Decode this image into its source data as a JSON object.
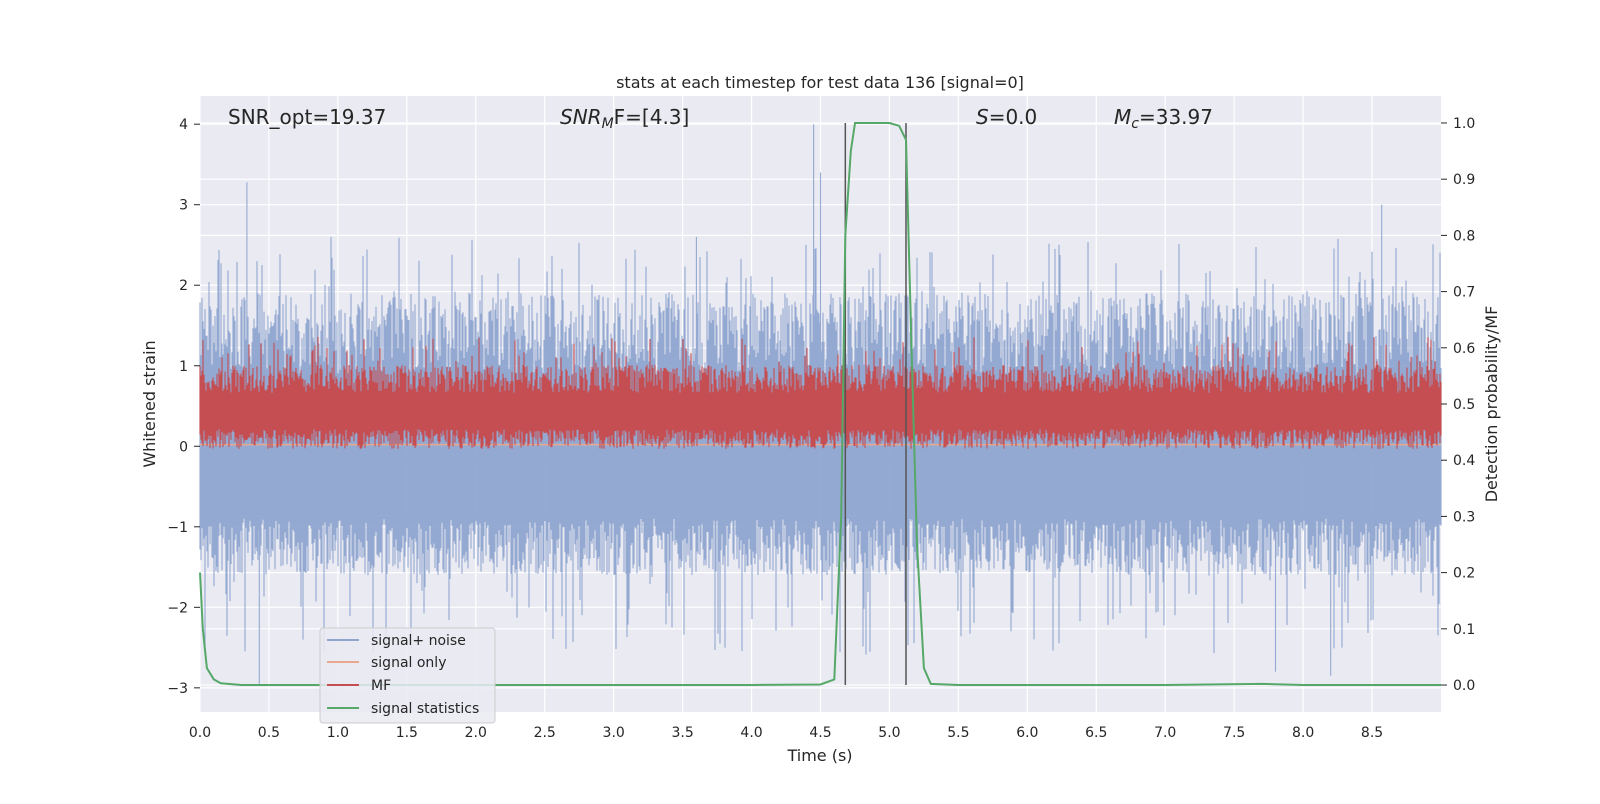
{
  "chart_data": {
    "type": "line",
    "title": "stats at each timestep for test data 136 [signal=0]",
    "xlabel": "Time (s)",
    "ylabel": "Whitened strain",
    "y2label": "Detection probability/MF",
    "xlim": [
      0.0,
      9.0
    ],
    "ylim": [
      -3.3,
      4.35
    ],
    "y2lim": [
      -0.048,
      1.048
    ],
    "xticks": [
      "0.0",
      "0.5",
      "1.0",
      "1.5",
      "2.0",
      "2.5",
      "3.0",
      "3.5",
      "4.0",
      "4.5",
      "5.0",
      "5.5",
      "6.0",
      "6.5",
      "7.0",
      "7.5",
      "8.0",
      "8.5"
    ],
    "yticks": [
      "−3",
      "−2",
      "−1",
      "0",
      "1",
      "2",
      "3",
      "4"
    ],
    "y2ticks": [
      "0.0",
      "0.1",
      "0.2",
      "0.3",
      "0.4",
      "0.5",
      "0.6",
      "0.7",
      "0.8",
      "0.9",
      "1.0"
    ],
    "grid": true,
    "legend_position": "lower-left",
    "annotations": {
      "snr_opt": "SNR_opt=19.37",
      "snr_mf_base": "SNR",
      "snr_mf_sub": "M",
      "snr_mf_rest": "F=[4.3]",
      "s_var": "S",
      "s_rest": "=0.0",
      "mc_var": "M",
      "mc_sub": "c",
      "mc_rest": "=33.97"
    },
    "vlines_x": [
      4.68,
      5.12
    ],
    "series": [
      {
        "name": "signal+ noise",
        "color": "#8fa5cf",
        "kind": "noise",
        "x_range": [
          0.0,
          9.0
        ],
        "typical_range": [
          -1.6,
          1.9
        ],
        "peaks": [
          [
            0.34,
            3.28
          ],
          [
            4.45,
            4.0
          ],
          [
            4.5,
            3.4
          ],
          [
            8.57,
            3.0
          ],
          [
            0.95,
            2.6
          ],
          [
            3.6,
            2.6
          ],
          [
            0.43,
            -2.95
          ],
          [
            7.8,
            -2.8
          ],
          [
            8.2,
            -2.85
          ]
        ]
      },
      {
        "name": "signal only",
        "color": "#e8a88d",
        "kind": "flat",
        "y": 0.02
      },
      {
        "name": "MF",
        "color": "#c44e52",
        "kind": "mf",
        "y2_range": [
          0.42,
          0.57
        ]
      },
      {
        "name": "signal statistics",
        "color": "#55a868",
        "kind": "line",
        "axis": "right",
        "x": [
          0.0,
          0.02,
          0.05,
          0.1,
          0.15,
          0.3,
          1.0,
          2.0,
          3.0,
          4.0,
          4.5,
          4.6,
          4.65,
          4.68,
          4.72,
          4.75,
          4.8,
          5.0,
          5.07,
          5.12,
          5.16,
          5.2,
          5.25,
          5.3,
          5.5,
          6.0,
          7.0,
          7.7,
          8.0,
          9.0
        ],
        "y": [
          0.2,
          0.1,
          0.03,
          0.01,
          0.003,
          0.0,
          0.0,
          0.0,
          0.0,
          0.0,
          0.001,
          0.01,
          0.3,
          0.8,
          0.95,
          1.0,
          1.0,
          1.0,
          0.995,
          0.97,
          0.6,
          0.25,
          0.03,
          0.002,
          0.0,
          0.0,
          0.0,
          0.002,
          0.0,
          0.0
        ]
      }
    ]
  }
}
